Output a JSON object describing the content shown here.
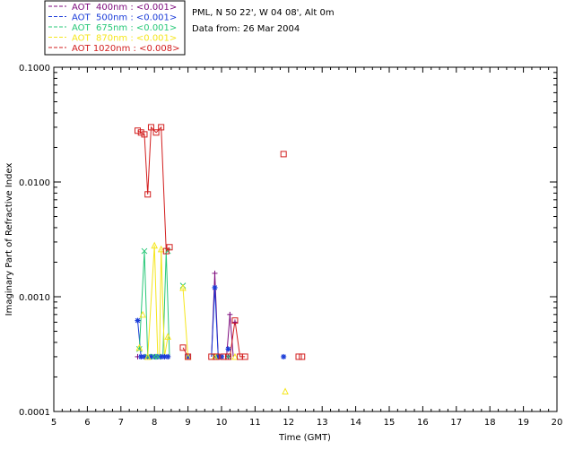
{
  "chart_data": {
    "type": "scatter",
    "title": "",
    "xlabel": "Time (GMT)",
    "ylabel": "Imaginary Part of Refractive Index",
    "xlim": [
      5,
      20
    ],
    "ylim": [
      0.0001,
      0.1
    ],
    "yscale": "log",
    "x_ticks": [
      "5",
      "6",
      "7",
      "8",
      "9",
      "10",
      "11",
      "12",
      "13",
      "14",
      "15",
      "16",
      "17",
      "18",
      "19",
      "20"
    ],
    "y_ticks": [
      "0.0001",
      "0.0010",
      "0.0100",
      "0.1000"
    ],
    "info_lines": [
      "PML, N 50 22', W 04 08', Alt 0m",
      "Data from: 26 Mar 2004"
    ],
    "legend_placement": "top-left, outside plot",
    "series": [
      {
        "name": "AOT  400nm : <0.001>",
        "color": "#7d0a7d",
        "marker": "plus",
        "points": [
          [
            7.5,
            0.0003
          ],
          [
            7.6,
            0.0003
          ],
          [
            7.7,
            0.0003
          ],
          [
            7.8,
            0.0003
          ],
          [
            7.9,
            0.0003
          ],
          [
            8.0,
            0.0003
          ],
          [
            8.1,
            0.0003
          ],
          [
            8.2,
            0.0003
          ],
          [
            8.3,
            0.0003
          ],
          [
            8.4,
            0.0003
          ],
          [
            9.0,
            0.0003
          ],
          [
            9.8,
            0.0016
          ],
          [
            9.9,
            0.0003
          ],
          [
            10.0,
            0.0003
          ],
          [
            10.2,
            0.0003
          ],
          [
            10.25,
            0.0007
          ],
          [
            10.4,
            0.0006
          ]
        ]
      },
      {
        "name": "AOT  500nm : <0.001>",
        "color": "#1a3cd8",
        "marker": "asterisk",
        "points": [
          [
            7.5,
            0.00062
          ],
          [
            7.6,
            0.0003
          ],
          [
            7.7,
            0.0003
          ],
          [
            7.8,
            0.0003
          ],
          [
            7.9,
            0.0003
          ],
          [
            8.0,
            0.0003
          ],
          [
            8.1,
            0.0003
          ],
          [
            8.2,
            0.0003
          ],
          [
            8.3,
            0.0003
          ],
          [
            8.4,
            0.0003
          ],
          [
            9.0,
            0.0003
          ],
          [
            9.8,
            0.0012
          ],
          [
            9.9,
            0.0003
          ],
          [
            10.0,
            0.0003
          ],
          [
            10.2,
            0.00035
          ],
          [
            11.85,
            0.0003
          ]
        ]
      },
      {
        "name": "AOT  675nm : <0.001>",
        "color": "#28c878",
        "marker": "x",
        "points": [
          [
            7.55,
            0.00035
          ],
          [
            7.7,
            0.0025
          ],
          [
            7.8,
            0.0003
          ],
          [
            8.0,
            0.0003
          ],
          [
            8.1,
            0.0003
          ],
          [
            8.4,
            0.0025
          ],
          [
            8.85,
            0.00125
          ],
          [
            9.8,
            0.0003
          ],
          [
            10.2,
            0.0003
          ]
        ]
      },
      {
        "name": "AOT  870nm : <0.001>",
        "color": "#f5e61e",
        "marker": "triangle",
        "points": [
          [
            7.55,
            0.00036
          ],
          [
            7.65,
            0.0007
          ],
          [
            7.8,
            0.0003
          ],
          [
            8.0,
            0.0028
          ],
          [
            8.2,
            0.0026
          ],
          [
            8.4,
            0.00045
          ],
          [
            8.85,
            0.0012
          ],
          [
            9.0,
            0.0003
          ],
          [
            9.8,
            0.0003
          ],
          [
            10.4,
            0.0003
          ],
          [
            11.9,
            0.00015
          ]
        ]
      },
      {
        "name": "AOT 1020nm : <0.008>",
        "color": "#d21e1e",
        "marker": "square",
        "points": [
          [
            7.5,
            0.028
          ],
          [
            7.6,
            0.027
          ],
          [
            7.7,
            0.026
          ],
          [
            7.8,
            0.0078
          ],
          [
            7.9,
            0.03
          ],
          [
            8.05,
            0.027
          ],
          [
            8.2,
            0.03
          ],
          [
            8.35,
            0.0025
          ],
          [
            8.45,
            0.0027
          ],
          [
            8.85,
            0.00036
          ],
          [
            9.0,
            0.0003
          ],
          [
            9.7,
            0.0003
          ],
          [
            9.85,
            0.0003
          ],
          [
            10.05,
            0.0003
          ],
          [
            10.2,
            0.0003
          ],
          [
            10.4,
            0.00062
          ],
          [
            10.55,
            0.0003
          ],
          [
            10.7,
            0.0003
          ],
          [
            11.85,
            0.0175
          ],
          [
            12.3,
            0.0003
          ],
          [
            12.4,
            0.0003
          ]
        ]
      }
    ],
    "lines": [
      {
        "series": 0,
        "points": [
          [
            9.7,
            0.0003
          ],
          [
            9.8,
            0.0016
          ],
          [
            9.9,
            0.0003
          ]
        ]
      },
      {
        "series": 0,
        "points": [
          [
            10.15,
            0.0003
          ],
          [
            10.25,
            0.0007
          ],
          [
            10.35,
            0.0003
          ]
        ]
      },
      {
        "series": 1,
        "points": [
          [
            7.5,
            0.00062
          ],
          [
            7.6,
            0.0003
          ]
        ]
      },
      {
        "series": 1,
        "points": [
          [
            9.7,
            0.0003
          ],
          [
            9.8,
            0.0012
          ],
          [
            9.9,
            0.0003
          ]
        ]
      },
      {
        "series": 2,
        "points": [
          [
            7.55,
            0.00035
          ],
          [
            7.7,
            0.0025
          ],
          [
            7.8,
            0.0003
          ]
        ]
      },
      {
        "series": 2,
        "points": [
          [
            8.25,
            0.0003
          ],
          [
            8.35,
            0.0025
          ],
          [
            8.45,
            0.0003
          ]
        ]
      },
      {
        "series": 3,
        "points": [
          [
            7.8,
            0.0003
          ],
          [
            8.0,
            0.0028
          ],
          [
            8.1,
            0.0003
          ]
        ]
      },
      {
        "series": 3,
        "points": [
          [
            8.15,
            0.0003
          ],
          [
            8.2,
            0.0026
          ],
          [
            8.3,
            0.0003
          ],
          [
            8.4,
            0.00045
          ]
        ]
      },
      {
        "series": 3,
        "points": [
          [
            8.85,
            0.0012
          ],
          [
            9.0,
            0.0003
          ]
        ]
      },
      {
        "series": 4,
        "points": [
          [
            7.5,
            0.028
          ],
          [
            7.6,
            0.027
          ],
          [
            7.7,
            0.026
          ],
          [
            7.8,
            0.0078
          ],
          [
            7.9,
            0.03
          ],
          [
            8.05,
            0.027
          ],
          [
            8.2,
            0.03
          ],
          [
            8.35,
            0.0025
          ],
          [
            8.45,
            0.0027
          ]
        ]
      },
      {
        "series": 4,
        "points": [
          [
            8.85,
            0.00036
          ],
          [
            9.0,
            0.0003
          ]
        ]
      },
      {
        "series": 4,
        "points": [
          [
            10.25,
            0.0003
          ],
          [
            10.4,
            0.00062
          ],
          [
            10.55,
            0.0003
          ],
          [
            10.7,
            0.0003
          ]
        ]
      }
    ]
  }
}
